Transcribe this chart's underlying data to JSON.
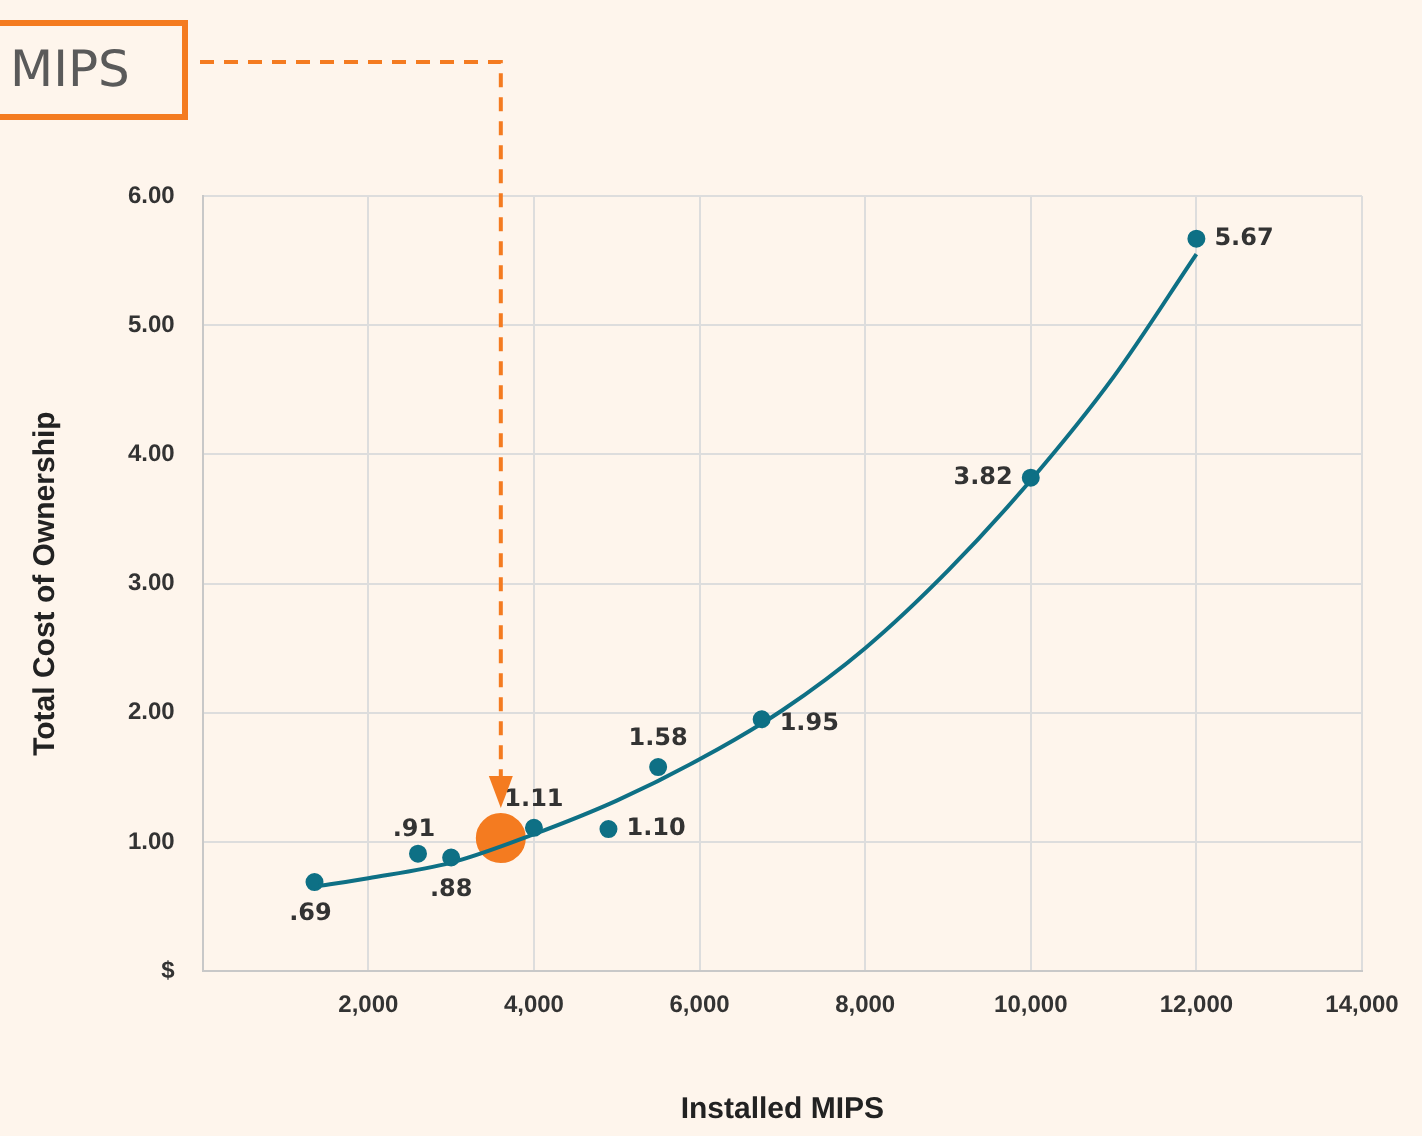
{
  "chart_data": {
    "type": "scatter",
    "xlabel": "Installed MIPS",
    "ylabel": "Total Cost of Ownership",
    "xlim": [
      0,
      14000
    ],
    "xticks": [
      {
        "value": 0,
        "label": null
      },
      {
        "value": 2000,
        "label": "2,000"
      },
      {
        "value": 4000,
        "label": "4,000"
      },
      {
        "value": 6000,
        "label": "6,000"
      },
      {
        "value": 8000,
        "label": "8,000"
      },
      {
        "value": 10000,
        "label": "10,000"
      },
      {
        "value": 12000,
        "label": "12,000"
      },
      {
        "value": 14000,
        "label": "14,000"
      }
    ],
    "ylim": [
      0,
      6
    ],
    "yticks": [
      {
        "value": 0,
        "label": "$"
      },
      {
        "value": 1,
        "label": "1.00"
      },
      {
        "value": 2,
        "label": "2.00"
      },
      {
        "value": 3,
        "label": "3.00"
      },
      {
        "value": 4,
        "label": "4.00"
      },
      {
        "value": 5,
        "label": "5.00"
      },
      {
        "value": 6,
        "label": "6.00"
      }
    ],
    "grid": true,
    "marker": "circle",
    "series": [
      {
        "type": "line",
        "color": "#0e7085",
        "marker": "none",
        "x": [
          1400,
          2000,
          3000,
          4000,
          5000,
          6000,
          7000,
          8000,
          9000,
          10000,
          11000,
          12000
        ],
        "values": [
          0.66,
          0.72,
          0.84,
          1.06,
          1.32,
          1.64,
          2.02,
          2.5,
          3.1,
          3.8,
          4.6,
          5.55
        ]
      },
      {
        "color": "#0e7085",
        "x": [
          1350,
          2600,
          3000,
          4000,
          4900,
          5500,
          6750,
          10000,
          12000
        ],
        "values": [
          0.69,
          0.91,
          0.88,
          1.11,
          1.1,
          1.58,
          1.95,
          3.82,
          5.67
        ],
        "value_labels": [
          ".69",
          ".91",
          ".88",
          "1.11",
          "1.10",
          "1.58",
          "1.95",
          "3.82",
          "5.67"
        ]
      },
      {
        "color": "#f47b20",
        "x": [
          3600
        ],
        "values": [
          1.03
        ]
      }
    ],
    "annotations": [
      "MIPS"
    ]
  }
}
